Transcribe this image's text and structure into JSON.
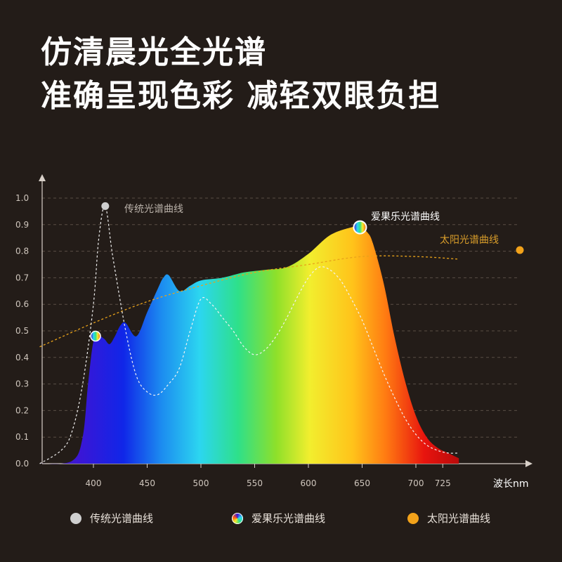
{
  "header": {
    "line1": "仿清晨光全光谱",
    "line2": "准确呈现色彩 减轻双眼负担"
  },
  "colors": {
    "background": "#231c18",
    "traditional": "#cfcfcf",
    "sun": "#e8a21a"
  },
  "chart_data": {
    "type": "line",
    "xlabel": "波长nm",
    "xlim": [
      350,
      800
    ],
    "ylim": [
      0,
      1.0
    ],
    "x_ticks": [
      "400",
      "450",
      "500",
      "550",
      "600",
      "650",
      "700",
      "725"
    ],
    "y_ticks": [
      "0.0",
      "0.1",
      "0.2",
      "0.3",
      "0.4",
      "0.5",
      "0.6",
      "0.7",
      "0.8",
      "0.9",
      "1.0"
    ],
    "grid": true,
    "series": [
      {
        "name": "传统光谱曲线",
        "style": "dashed-white",
        "x": [
          350,
          370,
          380,
          390,
          400,
          405,
          411,
          418,
          430,
          440,
          450,
          460,
          470,
          480,
          490,
          500,
          510,
          520,
          530,
          540,
          550,
          560,
          570,
          580,
          590,
          600,
          610,
          620,
          630,
          640,
          650,
          660,
          670,
          680,
          690,
          700,
          710,
          720,
          730,
          740
        ],
        "y": [
          0.0,
          0.05,
          0.12,
          0.3,
          0.6,
          0.85,
          0.97,
          0.78,
          0.5,
          0.33,
          0.27,
          0.26,
          0.3,
          0.36,
          0.5,
          0.62,
          0.6,
          0.55,
          0.5,
          0.44,
          0.41,
          0.43,
          0.48,
          0.55,
          0.63,
          0.7,
          0.74,
          0.73,
          0.69,
          0.62,
          0.54,
          0.44,
          0.34,
          0.25,
          0.17,
          0.11,
          0.07,
          0.05,
          0.04,
          0.04
        ]
      },
      {
        "name": "爱果乐光谱曲线",
        "style": "rainbow-fill",
        "x": [
          350,
          380,
          390,
          395,
          400,
          405,
          410,
          415,
          420,
          425,
          430,
          440,
          450,
          460,
          465,
          470,
          480,
          490,
          500,
          520,
          540,
          560,
          580,
          600,
          620,
          640,
          648,
          655,
          660,
          670,
          680,
          690,
          700,
          710,
          720,
          730,
          740
        ],
        "y": [
          0.0,
          0.01,
          0.1,
          0.3,
          0.46,
          0.48,
          0.47,
          0.45,
          0.48,
          0.52,
          0.53,
          0.48,
          0.57,
          0.66,
          0.7,
          0.71,
          0.65,
          0.67,
          0.69,
          0.7,
          0.72,
          0.73,
          0.74,
          0.79,
          0.86,
          0.89,
          0.89,
          0.87,
          0.83,
          0.68,
          0.48,
          0.31,
          0.18,
          0.1,
          0.06,
          0.04,
          0.02
        ]
      },
      {
        "name": "太阳光谱曲线",
        "style": "dashed-orange",
        "x": [
          350,
          400,
          450,
          500,
          550,
          600,
          650,
          700,
          740
        ],
        "y": [
          0.44,
          0.53,
          0.61,
          0.67,
          0.72,
          0.75,
          0.78,
          0.78,
          0.77
        ]
      }
    ]
  },
  "labels": {
    "traditional": "传统光谱曲线",
    "aiguole": "爱果乐光谱曲线",
    "sun": "太阳光谱曲线"
  },
  "legend": [
    {
      "label": "传统光谱曲线",
      "icon": "gray-dot-icon"
    },
    {
      "label": "爱果乐光谱曲线",
      "icon": "rainbow-dot-icon"
    },
    {
      "label": "太阳光谱曲线",
      "icon": "orange-dot-icon"
    }
  ]
}
